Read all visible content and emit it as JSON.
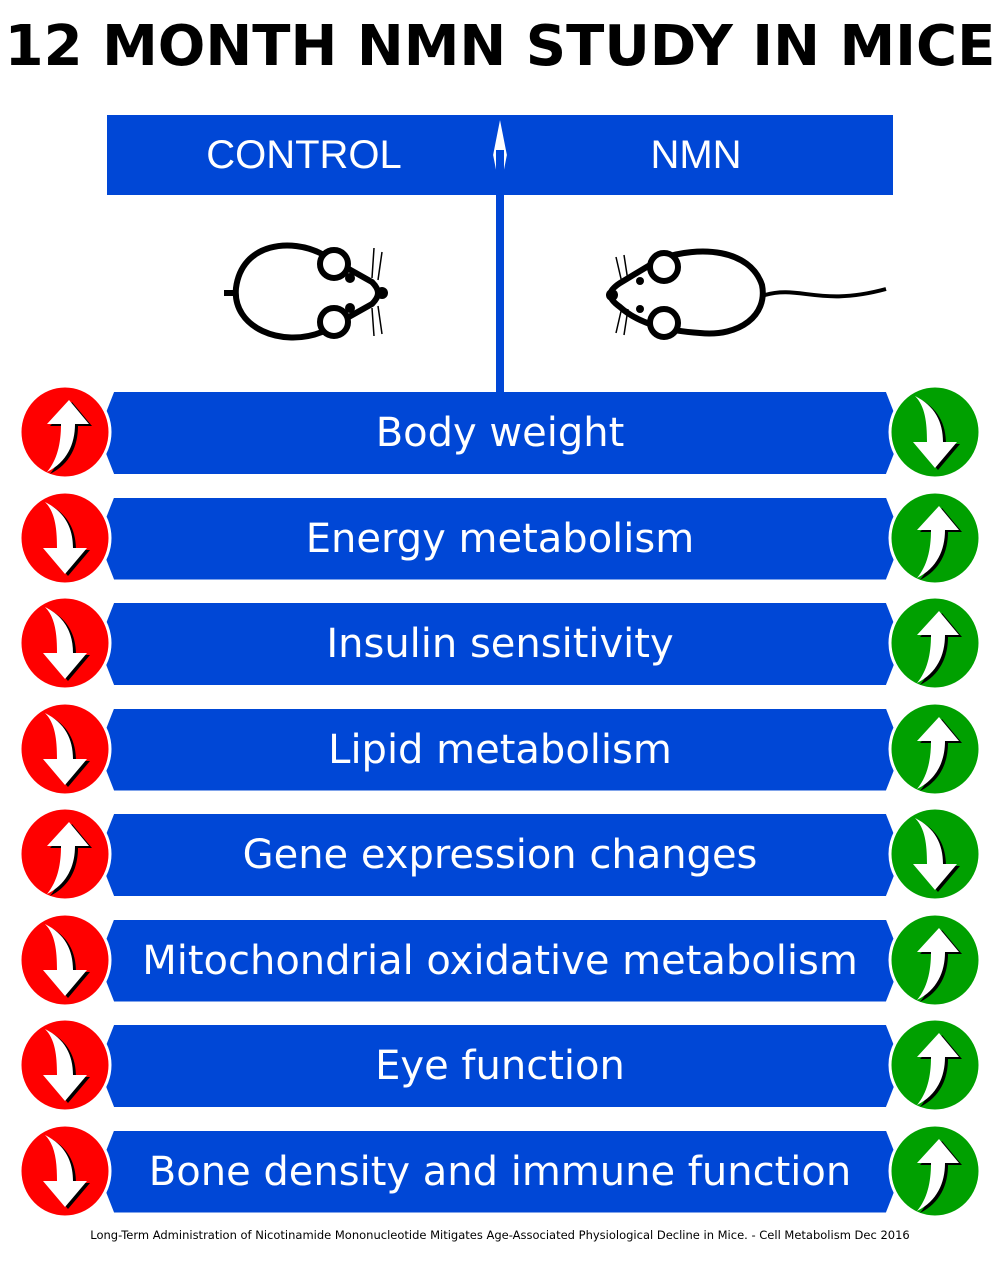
{
  "title": "12 MONTH NMN STUDY IN MICE",
  "groups": {
    "control": "CONTROL",
    "nmn": "NMN"
  },
  "colors": {
    "bar": "#0047d6",
    "control_circle": "#ff0000",
    "nmn_circle": "#00a000"
  },
  "rows": [
    {
      "label": "Body weight",
      "control": "up",
      "nmn": "down"
    },
    {
      "label": "Energy metabolism",
      "control": "down",
      "nmn": "up"
    },
    {
      "label": "Insulin sensitivity",
      "control": "down",
      "nmn": "up"
    },
    {
      "label": "Lipid metabolism",
      "control": "down",
      "nmn": "up"
    },
    {
      "label": "Gene expression changes",
      "control": "up",
      "nmn": "down"
    },
    {
      "label": "Mitochondrial oxidative metabolism",
      "control": "down",
      "nmn": "up"
    },
    {
      "label": "Eye function",
      "control": "down",
      "nmn": "up"
    },
    {
      "label": "Bone density and immune function",
      "control": "down",
      "nmn": "up"
    }
  ],
  "citation": "Long-Term Administration of Nicotinamide Mononucleotide Mitigates Age-Associated Physiological Decline in Mice. - Cell Metabolism Dec 2016"
}
